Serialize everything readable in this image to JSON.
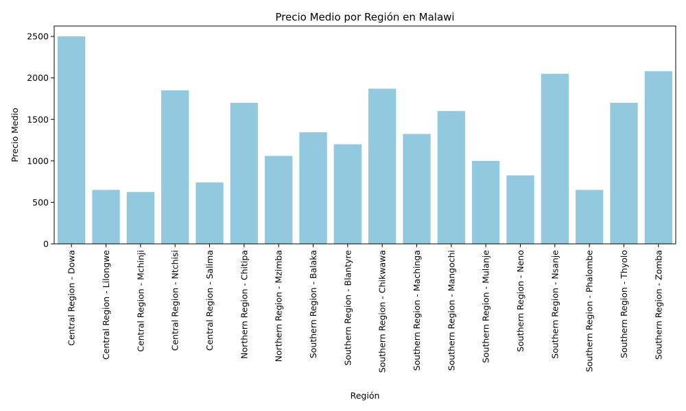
{
  "chart_data": {
    "type": "bar",
    "title": "Precio Medio por Región en Malawi",
    "xlabel": "Región",
    "ylabel": "Precio Medio",
    "ylim": [
      0,
      2625
    ],
    "yticks": [
      0,
      500,
      1000,
      1500,
      2000,
      2500
    ],
    "grid": false,
    "colors": {
      "bar": "#92c9df",
      "axis": "#000000"
    },
    "categories": [
      "Central Region - Dowa",
      "Central Region - Lilongwe",
      "Central Region - Mchinji",
      "Central Region - Ntchisi",
      "Central Region - Salima",
      "Northern Region - Chitipa",
      "Northern Region - Mzimba",
      "Southern Region - Balaka",
      "Southern Region - Blantyre",
      "Southern Region - Chikwawa",
      "Southern Region - Machinga",
      "Southern Region - Mangochi",
      "Southern Region - Mulanje",
      "Southern Region - Neno",
      "Southern Region - Nsanje",
      "Southern Region - Phalombe",
      "Southern Region - Thyolo",
      "Southern Region - Zomba"
    ],
    "values": [
      2500,
      650,
      625,
      1850,
      740,
      1700,
      1060,
      1345,
      1200,
      1870,
      1325,
      1600,
      1000,
      825,
      2050,
      650,
      1700,
      2080
    ]
  }
}
